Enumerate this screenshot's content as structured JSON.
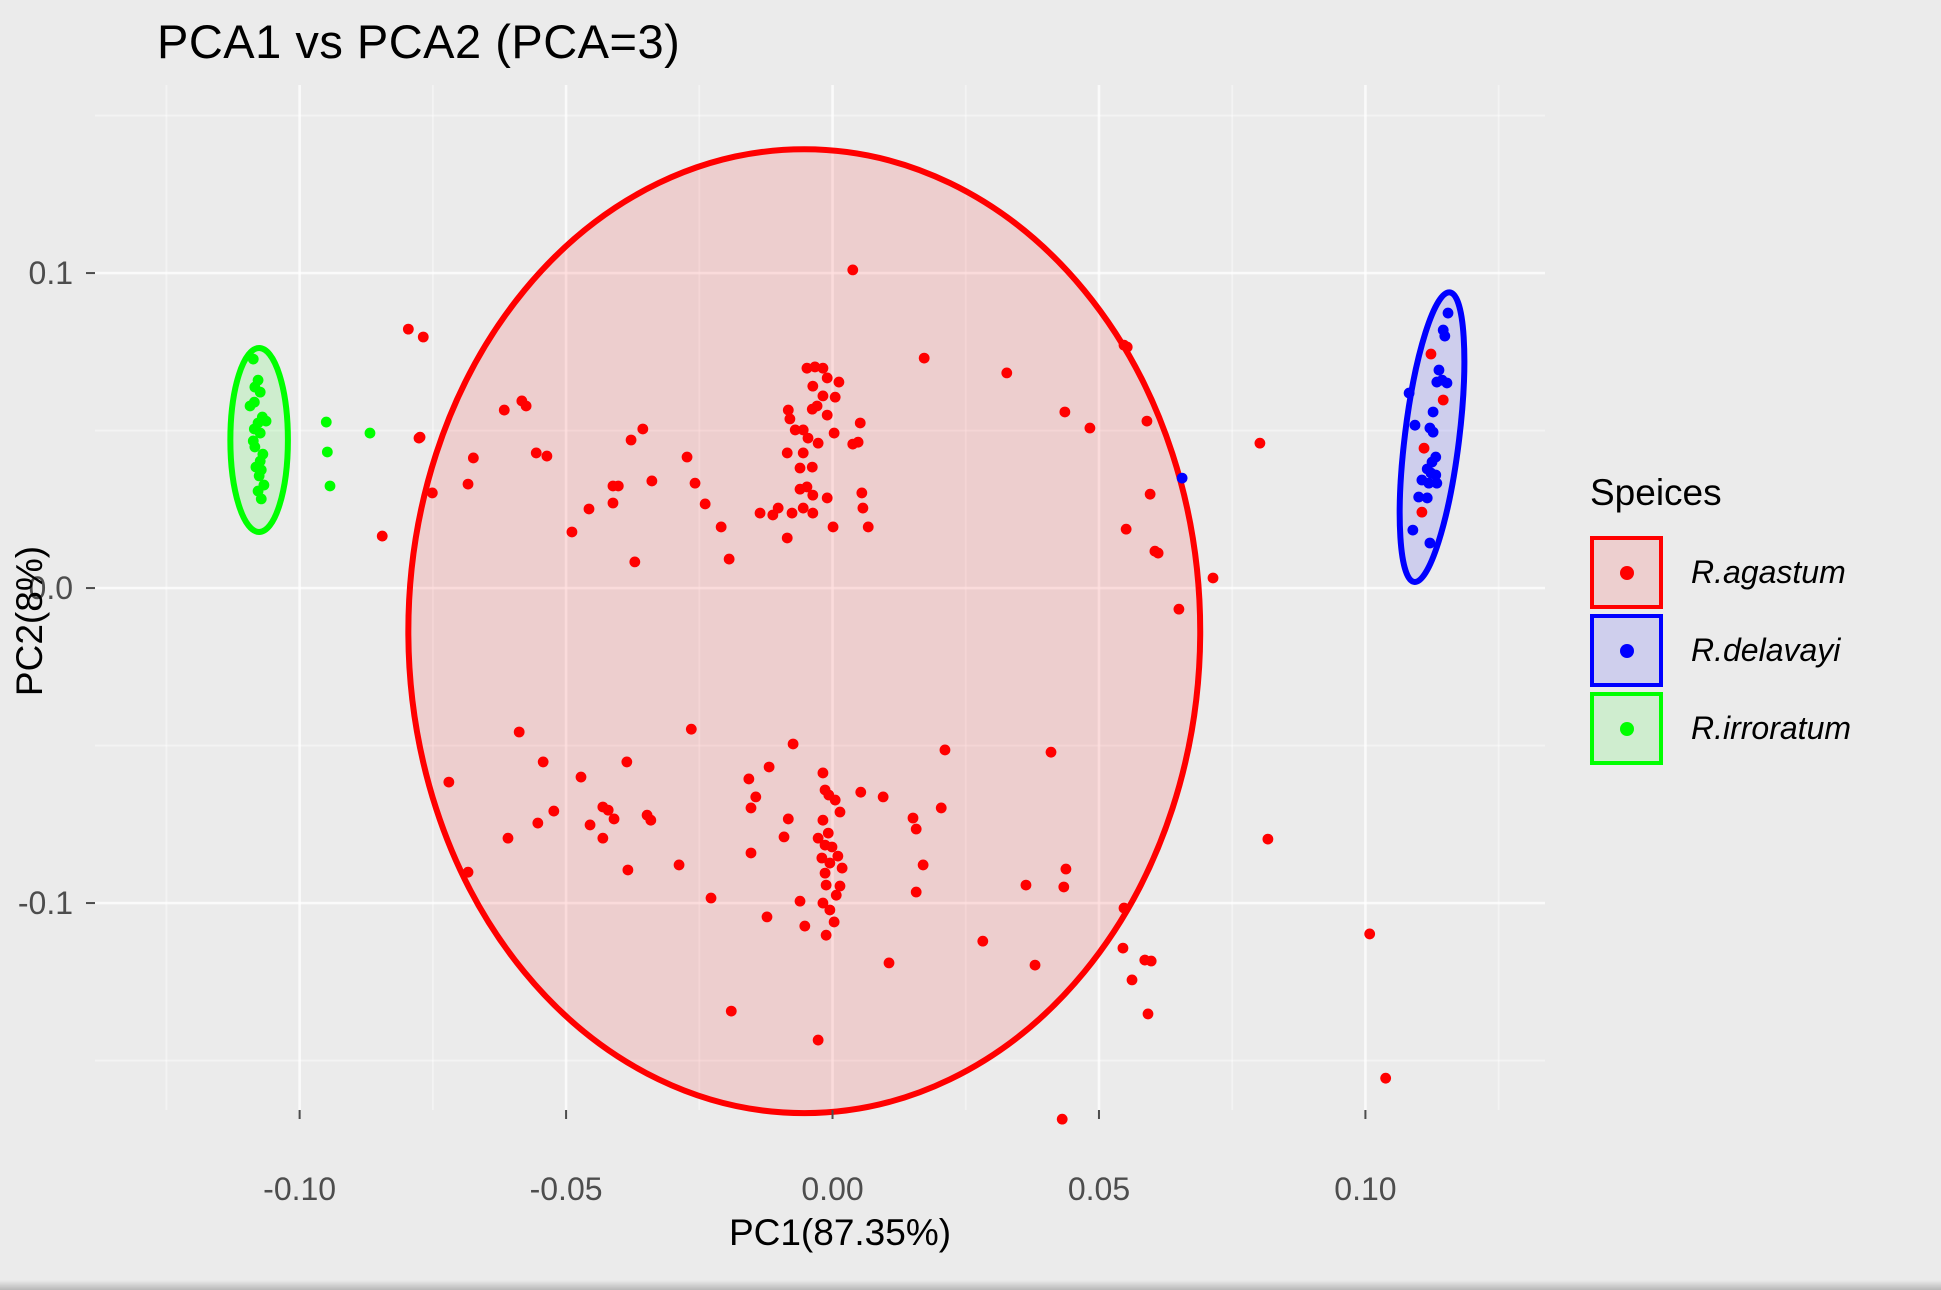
{
  "title": "PCA1 vs PCA2 (PCA=3)",
  "chart_data": {
    "type": "scatter",
    "title": "PCA1 vs PCA2 (PCA=3)",
    "xlabel": "PC1(87.35%)",
    "ylabel": "PC2(8%)",
    "xlim": [
      -0.1384,
      0.1337
    ],
    "ylim": [
      -0.1657,
      0.1597
    ],
    "grid": true,
    "x_ticks": {
      "values": [
        -0.1,
        -0.05,
        0.0,
        0.05,
        0.1
      ],
      "labels": [
        "-0.10",
        "-0.05",
        "0.00",
        "0.05",
        "0.10"
      ]
    },
    "y_ticks": {
      "values": [
        0.1,
        0.0,
        -0.1
      ],
      "labels": [
        "0.1",
        "0.0",
        "-0.1"
      ]
    },
    "x_minor_ticks": [
      -0.125,
      -0.075,
      -0.025,
      0.025,
      0.075,
      0.125
    ],
    "y_minor_ticks": [
      0.15,
      0.05,
      -0.05,
      -0.15
    ],
    "colors": {
      "background": "#EBEBEB",
      "grid_major": "rgba(255,255,255,0.75)",
      "grid_minor": "rgba(255,255,255,0.40)",
      "tick_label": "#4D4D4D",
      "red": "#FF0000",
      "blue": "#0000FF",
      "green": "#00FF00"
    },
    "legend": {
      "title": "Speices",
      "position": "right"
    },
    "series": [
      {
        "name": "R.agastum",
        "color": "#FF0000",
        "key_fill": "#EDCFCF",
        "ellipse": {
          "cx": -0.0053,
          "cy": -0.0137,
          "rx": 0.0743,
          "ry": 0.153,
          "angle": 0
        },
        "points": [
          [
            0.0038,
            0.101
          ],
          [
            -0.0048,
            0.0698
          ],
          [
            -0.0033,
            0.0702
          ],
          [
            -0.0018,
            0.0698
          ],
          [
            -0.001,
            0.0667
          ],
          [
            0.0012,
            0.0654
          ],
          [
            -0.0037,
            0.0641
          ],
          [
            -0.0018,
            0.061
          ],
          [
            0.0005,
            0.0606
          ],
          [
            -0.0083,
            0.0565
          ],
          [
            -0.0038,
            0.0568
          ],
          [
            -0.0029,
            0.0578
          ],
          [
            -0.001,
            0.0549
          ],
          [
            -0.008,
            0.0537
          ],
          [
            -0.007,
            0.0502
          ],
          [
            -0.0055,
            0.0502
          ],
          [
            -0.0046,
            0.0476
          ],
          [
            -0.0085,
            0.0429
          ],
          [
            -0.0055,
            0.0429
          ],
          [
            -0.0027,
            0.046
          ],
          [
            0.0003,
            0.0492
          ],
          [
            0.0052,
            0.0524
          ],
          [
            0.0038,
            0.0457
          ],
          [
            0.0048,
            0.0463
          ],
          [
            -0.0038,
            0.0384
          ],
          [
            -0.0061,
            0.0381
          ],
          [
            -0.0048,
            0.0321
          ],
          [
            -0.0061,
            0.0314
          ],
          [
            -0.0037,
            0.0295
          ],
          [
            -0.001,
            0.0286
          ],
          [
            0.0055,
            0.0302
          ],
          [
            0.0057,
            0.0254
          ],
          [
            -0.0102,
            0.0254
          ],
          [
            -0.0076,
            0.0238
          ],
          [
            -0.0055,
            0.0254
          ],
          [
            -0.0037,
            0.0238
          ],
          [
            0.0001,
            0.0194
          ],
          [
            -0.0085,
            0.0159
          ],
          [
            0.0067,
            0.0194
          ],
          [
            -0.0774,
            0.0479
          ],
          [
            -0.0674,
            0.0413
          ],
          [
            -0.0684,
            0.033
          ],
          [
            -0.0751,
            0.0302
          ],
          [
            -0.0616,
            0.0565
          ],
          [
            -0.0583,
            0.0594
          ],
          [
            -0.0575,
            0.0578
          ],
          [
            -0.0556,
            0.0429
          ],
          [
            -0.0536,
            0.0419
          ],
          [
            -0.0489,
            0.0178
          ],
          [
            -0.0457,
            0.0251
          ],
          [
            -0.0412,
            0.027
          ],
          [
            -0.0412,
            0.0324
          ],
          [
            -0.0402,
            0.0324
          ],
          [
            -0.0378,
            0.047
          ],
          [
            -0.0356,
            0.0505
          ],
          [
            -0.0339,
            0.034
          ],
          [
            -0.0371,
            0.0083
          ],
          [
            -0.0273,
            0.0416
          ],
          [
            -0.0258,
            0.0333
          ],
          [
            -0.0239,
            0.0267
          ],
          [
            -0.0209,
            0.0194
          ],
          [
            -0.0194,
            0.0092
          ],
          [
            -0.0136,
            0.0238
          ],
          [
            -0.0112,
            0.0232
          ],
          [
            -0.0776,
            0.0476
          ],
          [
            -0.0796,
            0.0822
          ],
          [
            -0.0768,
            0.0797
          ],
          [
            -0.0845,
            0.0165
          ],
          [
            0.0436,
            0.0559
          ],
          [
            0.0483,
            0.0508
          ],
          [
            0.0547,
            0.0771
          ],
          [
            0.0172,
            0.073
          ],
          [
            0.0327,
            0.0683
          ],
          [
            0.0553,
            0.0765
          ],
          [
            0.059,
            0.053
          ],
          [
            0.0802,
            0.046
          ],
          [
            0.0596,
            0.0298
          ],
          [
            0.0551,
            0.0187
          ],
          [
            0.0605,
            0.0117
          ],
          [
            0.0714,
            0.0032
          ],
          [
            0.065,
            -0.0067
          ],
          [
            0.0611,
            0.0111
          ],
          [
            -0.0018,
            -0.0587
          ],
          [
            -0.0014,
            -0.0641
          ],
          [
            -0.0018,
            -0.0737
          ],
          [
            -0.0014,
            -0.0816
          ],
          [
            -0.0001,
            -0.0822
          ],
          [
            -0.0005,
            -0.0873
          ],
          [
            -0.0014,
            -0.0905
          ],
          [
            -0.0012,
            -0.0943
          ],
          [
            -0.0018,
            -0.1
          ],
          [
            0.0005,
            -0.0673
          ],
          [
            0.0014,
            -0.0711
          ],
          [
            -0.0008,
            -0.0778
          ],
          [
            0.001,
            -0.0851
          ],
          [
            0.0018,
            -0.0889
          ],
          [
            0.0007,
            -0.0975
          ],
          [
            -0.0005,
            -0.1022
          ],
          [
            -0.002,
            -0.0857
          ],
          [
            -0.0027,
            -0.0794
          ],
          [
            -0.0007,
            -0.0657
          ],
          [
            0.0014,
            -0.0946
          ],
          [
            0.0003,
            -0.106
          ],
          [
            -0.0012,
            -0.1102
          ],
          [
            0.0053,
            -0.0648
          ],
          [
            0.0095,
            -0.0663
          ],
          [
            0.0151,
            -0.073
          ],
          [
            0.0157,
            -0.0765
          ],
          [
            0.0204,
            -0.0698
          ],
          [
            0.017,
            -0.0879
          ],
          [
            0.0157,
            -0.0965
          ],
          [
            0.0211,
            -0.0514
          ],
          [
            0.0106,
            -0.119
          ],
          [
            0.0282,
            -0.1121
          ],
          [
            0.038,
            -0.1197
          ],
          [
            0.041,
            -0.0521
          ],
          [
            0.0363,
            -0.0943
          ],
          [
            0.0434,
            -0.0949
          ],
          [
            0.0438,
            -0.0892
          ],
          [
            -0.0061,
            -0.0994
          ],
          [
            -0.0052,
            -0.1073
          ],
          [
            -0.0288,
            -0.0879
          ],
          [
            -0.0228,
            -0.0984
          ],
          [
            -0.0157,
            -0.0606
          ],
          [
            -0.0153,
            -0.0698
          ],
          [
            -0.0144,
            -0.0663
          ],
          [
            -0.0119,
            -0.0568
          ],
          [
            -0.0153,
            -0.0841
          ],
          [
            -0.0123,
            -0.1044
          ],
          [
            -0.0091,
            -0.079
          ],
          [
            -0.0083,
            -0.0733
          ],
          [
            -0.0074,
            -0.0495
          ],
          [
            -0.0265,
            -0.0448
          ],
          [
            -0.0384,
            -0.0895
          ],
          [
            -0.0348,
            -0.0721
          ],
          [
            -0.0341,
            -0.0737
          ],
          [
            -0.0431,
            -0.0695
          ],
          [
            -0.0421,
            -0.0705
          ],
          [
            -0.041,
            -0.0733
          ],
          [
            -0.0472,
            -0.06
          ],
          [
            -0.0455,
            -0.0752
          ],
          [
            -0.0431,
            -0.0794
          ],
          [
            -0.0523,
            -0.0708
          ],
          [
            -0.0553,
            -0.0746
          ],
          [
            -0.0543,
            -0.0552
          ],
          [
            -0.0588,
            -0.0457
          ],
          [
            -0.0609,
            -0.0794
          ],
          [
            -0.0684,
            -0.0902
          ],
          [
            -0.072,
            -0.0616
          ],
          [
            -0.0386,
            -0.0552
          ],
          [
            -0.019,
            -0.1343
          ],
          [
            -0.0027,
            -0.1435
          ],
          [
            0.0592,
            -0.1352
          ],
          [
            0.0431,
            -0.1686
          ],
          [
            0.1038,
            -0.1556
          ],
          [
            0.1008,
            -0.1098
          ],
          [
            0.0817,
            -0.0797
          ],
          [
            0.0598,
            -0.1184
          ],
          [
            0.0547,
            -0.1016
          ],
          [
            0.0545,
            -0.1143
          ],
          [
            0.0586,
            -0.1181
          ],
          [
            0.0562,
            -0.1244
          ],
          [
            0.1123,
            0.0743
          ],
          [
            0.1146,
            0.0597
          ],
          [
            0.111,
            0.0444
          ],
          [
            0.1106,
            0.0241
          ]
        ]
      },
      {
        "name": "R.delavayi",
        "color": "#0000FF",
        "key_fill": "#CFCFED",
        "ellipse": {
          "cx": 0.1125,
          "cy": 0.0479,
          "rx": 0.0051,
          "ry": 0.0463,
          "angle": 7
        },
        "points": [
          [
            0.1155,
            0.0873
          ],
          [
            0.1146,
            0.0819
          ],
          [
            0.1149,
            0.08
          ],
          [
            0.1138,
            0.0692
          ],
          [
            0.1144,
            0.066
          ],
          [
            0.1134,
            0.0654
          ],
          [
            0.1153,
            0.0651
          ],
          [
            0.1082,
            0.0619
          ],
          [
            0.1127,
            0.0559
          ],
          [
            0.1093,
            0.0517
          ],
          [
            0.1121,
            0.0508
          ],
          [
            0.1127,
            0.0495
          ],
          [
            0.1132,
            0.0416
          ],
          [
            0.1125,
            0.04
          ],
          [
            0.1116,
            0.0378
          ],
          [
            0.1123,
            0.0365
          ],
          [
            0.1132,
            0.0359
          ],
          [
            0.1106,
            0.0343
          ],
          [
            0.1119,
            0.0333
          ],
          [
            0.1134,
            0.0333
          ],
          [
            0.11,
            0.0289
          ],
          [
            0.1116,
            0.0286
          ],
          [
            0.1089,
            0.0184
          ],
          [
            0.1121,
            0.0143
          ],
          [
            0.0656,
            0.0349
          ]
        ]
      },
      {
        "name": "R.irroratum",
        "color": "#00FF00",
        "key_fill": "#CFEDCF",
        "ellipse": {
          "cx": -0.1076,
          "cy": 0.047,
          "rx": 0.0054,
          "ry": 0.0292,
          "angle": 0
        },
        "points": [
          [
            -0.1087,
            0.0727
          ],
          [
            -0.1078,
            0.066
          ],
          [
            -0.1084,
            0.0638
          ],
          [
            -0.1074,
            0.0622
          ],
          [
            -0.1085,
            0.059
          ],
          [
            -0.1093,
            0.0578
          ],
          [
            -0.107,
            0.0543
          ],
          [
            -0.1063,
            0.053
          ],
          [
            -0.1078,
            0.0524
          ],
          [
            -0.1085,
            0.0505
          ],
          [
            -0.1074,
            0.0492
          ],
          [
            -0.1087,
            0.0467
          ],
          [
            -0.1084,
            0.0448
          ],
          [
            -0.1069,
            0.0425
          ],
          [
            -0.1074,
            0.0403
          ],
          [
            -0.1082,
            0.0384
          ],
          [
            -0.1072,
            0.0375
          ],
          [
            -0.1076,
            0.0356
          ],
          [
            -0.1067,
            0.0327
          ],
          [
            -0.1078,
            0.0308
          ],
          [
            -0.1072,
            0.0283
          ],
          [
            -0.095,
            0.0527
          ],
          [
            -0.0868,
            0.0492
          ],
          [
            -0.0948,
            0.0432
          ],
          [
            -0.0943,
            0.0324
          ]
        ]
      }
    ]
  }
}
